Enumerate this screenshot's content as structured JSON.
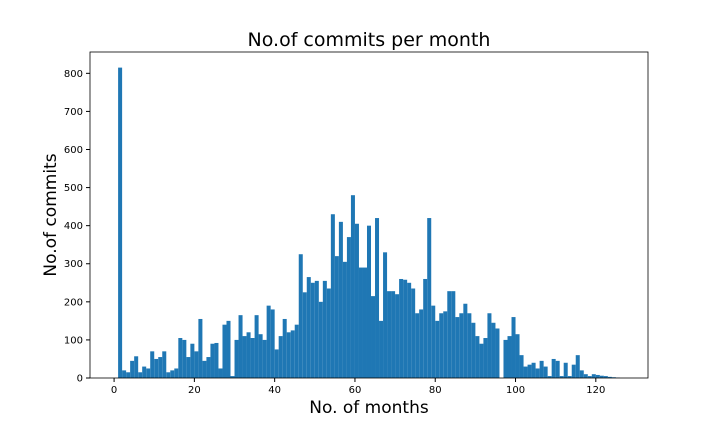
{
  "chart_data": {
    "type": "histogram",
    "title": "No.of commits per month",
    "xlabel": "No. of months",
    "ylabel": "No.of commits",
    "color": "#1f77b4",
    "grid": false,
    "bins": [
      1,
      2,
      3,
      4,
      5,
      6,
      7,
      8,
      9,
      10,
      11,
      12,
      13,
      14,
      15,
      16,
      17,
      18,
      19,
      20,
      21,
      22,
      23,
      24,
      25,
      26,
      27,
      28,
      29,
      30,
      31,
      32,
      33,
      34,
      35,
      36,
      37,
      38,
      39,
      40,
      41,
      42,
      43,
      44,
      45,
      46,
      47,
      48,
      49,
      50,
      51,
      52,
      53,
      54,
      55,
      56,
      57,
      58,
      59,
      60,
      61,
      62,
      63,
      64,
      65,
      66,
      67,
      68,
      69,
      70,
      71,
      72,
      73,
      74,
      75,
      76,
      77,
      78,
      79,
      80,
      81,
      82,
      83,
      84,
      85,
      86,
      87,
      88,
      89,
      90,
      91,
      92,
      93,
      94,
      95,
      96,
      97,
      98,
      99,
      100,
      101,
      102,
      103,
      104,
      105,
      106,
      107,
      108,
      109,
      110,
      111,
      112,
      113,
      114,
      115,
      116,
      117,
      118,
      119,
      120,
      121,
      122,
      123,
      124,
      125,
      126,
      127
    ],
    "counts": [
      815,
      20,
      15,
      45,
      57,
      15,
      30,
      25,
      70,
      50,
      55,
      70,
      15,
      20,
      25,
      105,
      100,
      55,
      90,
      70,
      155,
      45,
      55,
      90,
      92,
      25,
      140,
      150,
      5,
      100,
      165,
      110,
      120,
      105,
      165,
      115,
      100,
      190,
      180,
      75,
      110,
      155,
      120,
      125,
      140,
      325,
      225,
      265,
      250,
      255,
      200,
      255,
      235,
      430,
      320,
      410,
      305,
      370,
      480,
      405,
      290,
      290,
      400,
      215,
      420,
      150,
      330,
      228,
      228,
      220,
      260,
      258,
      250,
      235,
      170,
      180,
      260,
      420,
      190,
      150,
      170,
      175,
      228,
      228,
      160,
      170,
      195,
      170,
      145,
      110,
      90,
      105,
      170,
      145,
      130,
      0,
      100,
      110,
      160,
      115,
      60,
      30,
      35,
      40,
      25,
      45,
      30,
      5,
      50,
      45,
      5,
      40,
      5,
      35,
      60,
      20,
      10,
      5,
      10,
      8,
      6,
      5,
      3,
      2,
      1,
      0
    ],
    "xlim": [
      -6,
      133
    ],
    "xticks": [
      0,
      20,
      40,
      60,
      80,
      100,
      120
    ],
    "ylim": [
      0,
      856
    ],
    "yticks": [
      0,
      100,
      200,
      300,
      400,
      500,
      600,
      700,
      800
    ]
  }
}
